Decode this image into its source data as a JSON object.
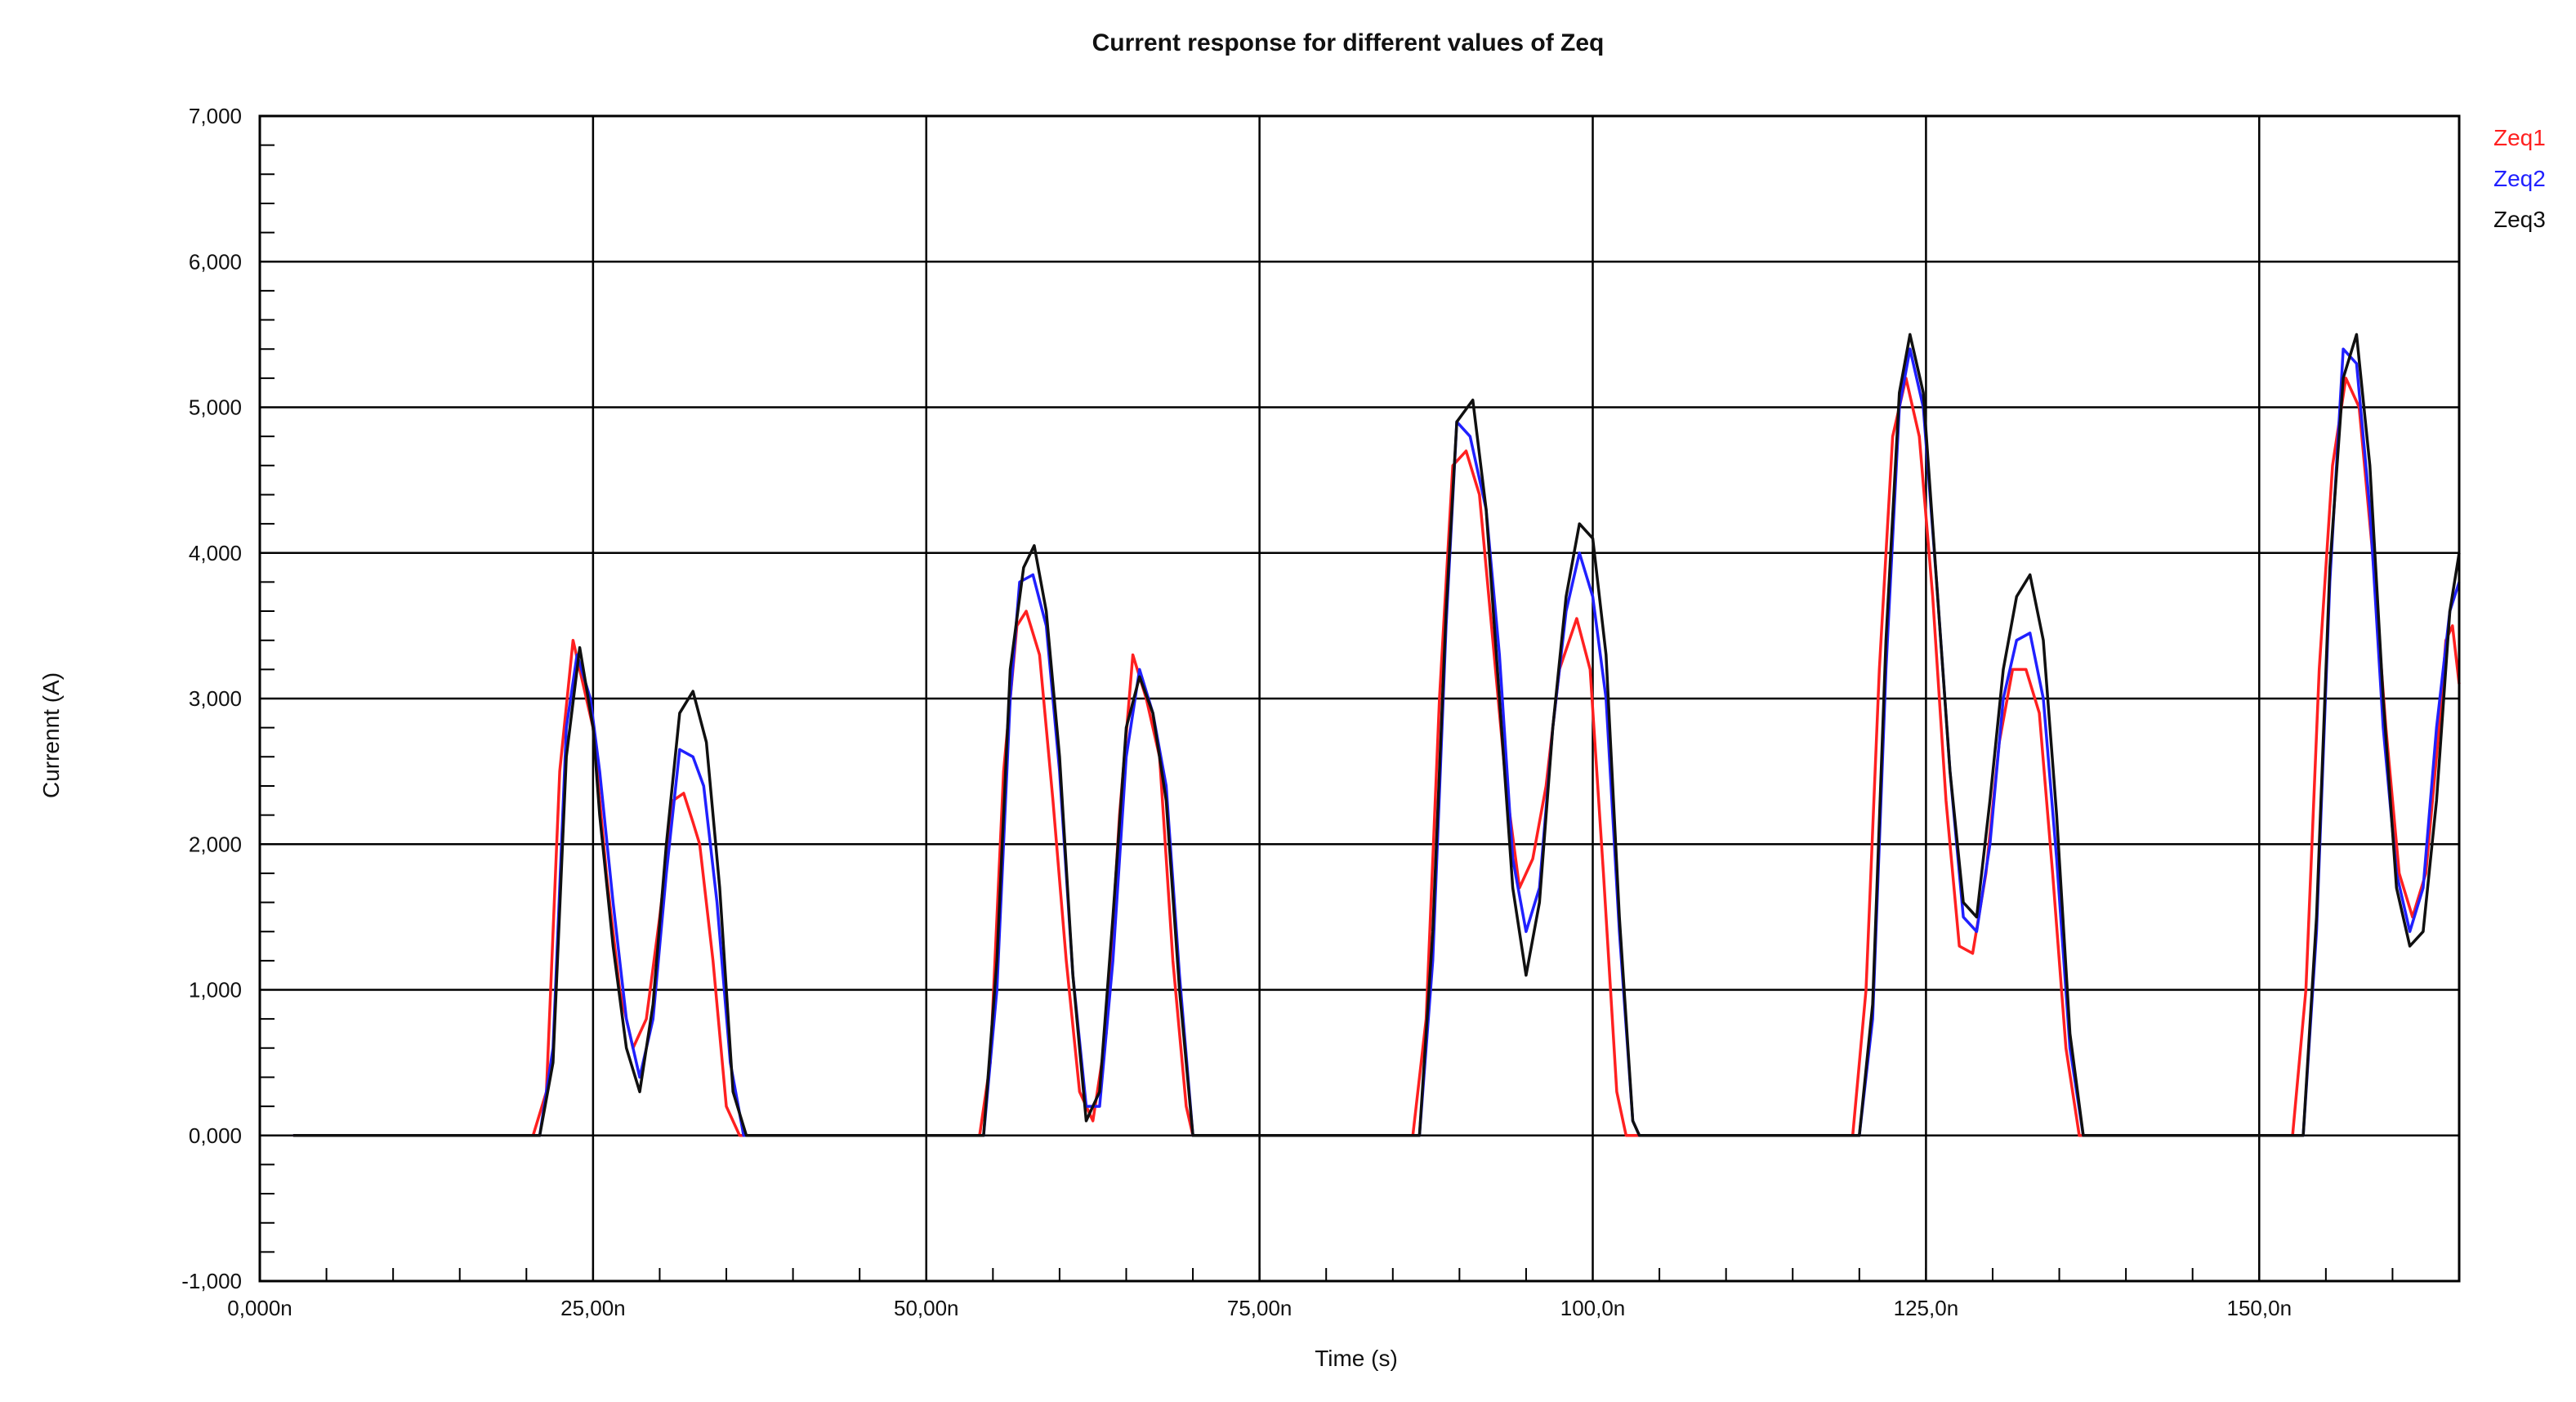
{
  "chart_data": {
    "type": "line",
    "title": "Current response for different values of Zeq",
    "xlabel": "Time (s)",
    "ylabel": "Currennt (A)",
    "xlim": [
      0,
      165
    ],
    "ylim": [
      -1000,
      7000
    ],
    "grid": true,
    "legend_position": "top-right",
    "x_ticks": [
      0,
      25,
      50,
      75,
      100,
      125,
      150
    ],
    "x_tick_labels": [
      "0,000n",
      "25,00n",
      "50,00n",
      "75,00n",
      "100,0n",
      "125,0n",
      "150,0n"
    ],
    "y_ticks": [
      -1000,
      0,
      1000,
      2000,
      3000,
      4000,
      5000,
      6000,
      7000
    ],
    "y_tick_labels": [
      "-1,000",
      "0,000",
      "1,000",
      "2,000",
      "3,000",
      "4,000",
      "5,000",
      "6,000",
      "7,000"
    ],
    "series": [
      {
        "name": "Zeq1",
        "color": "#ff2020",
        "points": [
          [
            2.5,
            0
          ],
          [
            20.5,
            0
          ],
          [
            21.5,
            300
          ],
          [
            22.5,
            2500
          ],
          [
            23.5,
            3400
          ],
          [
            24.5,
            3000
          ],
          [
            25,
            2800
          ],
          [
            26,
            1800
          ],
          [
            27,
            1000
          ],
          [
            28,
            600
          ],
          [
            29,
            800
          ],
          [
            30,
            1500
          ],
          [
            31,
            2300
          ],
          [
            31.8,
            2350
          ],
          [
            32.5,
            2150
          ],
          [
            33,
            2000
          ],
          [
            34,
            1200
          ],
          [
            35,
            200
          ],
          [
            36,
            0
          ],
          [
            54,
            0
          ],
          [
            54.8,
            500
          ],
          [
            55.8,
            2500
          ],
          [
            56.8,
            3500
          ],
          [
            57.5,
            3600
          ],
          [
            58.5,
            3300
          ],
          [
            59.5,
            2300
          ],
          [
            60.5,
            1200
          ],
          [
            61.5,
            300
          ],
          [
            62.5,
            100
          ],
          [
            63.5,
            700
          ],
          [
            64.5,
            2200
          ],
          [
            65.5,
            3300
          ],
          [
            66.5,
            3000
          ],
          [
            67.5,
            2600
          ],
          [
            68.5,
            1200
          ],
          [
            69.5,
            200
          ],
          [
            70,
            0
          ],
          [
            86.5,
            0
          ],
          [
            87.5,
            800
          ],
          [
            88.5,
            3000
          ],
          [
            89.5,
            4600
          ],
          [
            90.5,
            4700
          ],
          [
            91.5,
            4400
          ],
          [
            92.5,
            3400
          ],
          [
            93.5,
            2400
          ],
          [
            94.5,
            1700
          ],
          [
            95.5,
            1900
          ],
          [
            96.5,
            2400
          ],
          [
            97.5,
            3200
          ],
          [
            98.8,
            3550
          ],
          [
            99.8,
            3200
          ],
          [
            100.8,
            1800
          ],
          [
            101.8,
            300
          ],
          [
            102.5,
            0
          ],
          [
            119.5,
            0
          ],
          [
            120.5,
            1000
          ],
          [
            121.5,
            3200
          ],
          [
            122.5,
            4800
          ],
          [
            123.5,
            5200
          ],
          [
            124.5,
            4800
          ],
          [
            125.5,
            3700
          ],
          [
            126.5,
            2300
          ],
          [
            127.5,
            1300
          ],
          [
            128.5,
            1250
          ],
          [
            129.5,
            1800
          ],
          [
            130.5,
            2700
          ],
          [
            131.5,
            3200
          ],
          [
            132.5,
            3200
          ],
          [
            133.5,
            2900
          ],
          [
            134.5,
            1800
          ],
          [
            135.5,
            600
          ],
          [
            136.5,
            0
          ],
          [
            152.5,
            0
          ],
          [
            153.5,
            1000
          ],
          [
            154.5,
            3200
          ],
          [
            155.5,
            4600
          ],
          [
            156.5,
            5200
          ],
          [
            157.5,
            5000
          ],
          [
            158.5,
            4000
          ],
          [
            159.5,
            2800
          ],
          [
            160.5,
            1800
          ],
          [
            161.5,
            1500
          ],
          [
            162.5,
            1800
          ],
          [
            163.5,
            2800
          ],
          [
            164,
            3400
          ],
          [
            164.5,
            3500
          ],
          [
            165,
            3100
          ]
        ]
      },
      {
        "name": "Zeq2",
        "color": "#2020ff",
        "points": [
          [
            2.5,
            0
          ],
          [
            21,
            0
          ],
          [
            22,
            600
          ],
          [
            23,
            2800
          ],
          [
            23.8,
            3300
          ],
          [
            24.8,
            3000
          ],
          [
            25.5,
            2500
          ],
          [
            26.5,
            1600
          ],
          [
            27.5,
            800
          ],
          [
            28.5,
            400
          ],
          [
            29.5,
            800
          ],
          [
            30.5,
            1800
          ],
          [
            31.5,
            2650
          ],
          [
            32.5,
            2600
          ],
          [
            33.3,
            2400
          ],
          [
            34.3,
            1600
          ],
          [
            35.3,
            500
          ],
          [
            36.3,
            0
          ],
          [
            54.3,
            0
          ],
          [
            55.3,
            1000
          ],
          [
            56.3,
            3000
          ],
          [
            57,
            3800
          ],
          [
            58,
            3850
          ],
          [
            59,
            3500
          ],
          [
            60,
            2500
          ],
          [
            61,
            1100
          ],
          [
            62,
            200
          ],
          [
            63,
            200
          ],
          [
            64,
            1200
          ],
          [
            65,
            2600
          ],
          [
            66,
            3200
          ],
          [
            67,
            2900
          ],
          [
            68,
            2400
          ],
          [
            69,
            1100
          ],
          [
            70,
            0
          ],
          [
            87,
            0
          ],
          [
            88,
            1200
          ],
          [
            89,
            3500
          ],
          [
            89.8,
            4900
          ],
          [
            90.8,
            4800
          ],
          [
            92,
            4300
          ],
          [
            93,
            3300
          ],
          [
            94,
            1900
          ],
          [
            95,
            1400
          ],
          [
            96,
            1700
          ],
          [
            97,
            2800
          ],
          [
            98,
            3600
          ],
          [
            99,
            4000
          ],
          [
            100,
            3700
          ],
          [
            101,
            3000
          ],
          [
            102,
            1400
          ],
          [
            103,
            100
          ],
          [
            103.5,
            0
          ],
          [
            120,
            0
          ],
          [
            121,
            800
          ],
          [
            122,
            3200
          ],
          [
            123,
            5000
          ],
          [
            123.8,
            5400
          ],
          [
            124.8,
            5000
          ],
          [
            125.8,
            3800
          ],
          [
            126.8,
            2500
          ],
          [
            127.8,
            1500
          ],
          [
            128.8,
            1400
          ],
          [
            129.8,
            2000
          ],
          [
            130.8,
            3000
          ],
          [
            131.8,
            3400
          ],
          [
            132.8,
            3450
          ],
          [
            133.8,
            3000
          ],
          [
            134.8,
            1900
          ],
          [
            135.8,
            600
          ],
          [
            136.8,
            0
          ],
          [
            153.3,
            0
          ],
          [
            154.3,
            1400
          ],
          [
            155.3,
            3800
          ],
          [
            156.3,
            5400
          ],
          [
            157.3,
            5300
          ],
          [
            158.3,
            4300
          ],
          [
            159.3,
            2800
          ],
          [
            160.3,
            1800
          ],
          [
            161.3,
            1400
          ],
          [
            162.3,
            1700
          ],
          [
            163.3,
            2800
          ],
          [
            164.3,
            3600
          ],
          [
            165,
            3800
          ]
        ]
      },
      {
        "name": "Zeq3",
        "color": "#101010",
        "points": [
          [
            2.5,
            0
          ],
          [
            21,
            0
          ],
          [
            22,
            500
          ],
          [
            23,
            2600
          ],
          [
            24,
            3350
          ],
          [
            25,
            2800
          ],
          [
            25.5,
            2200
          ],
          [
            26.5,
            1300
          ],
          [
            27.5,
            600
          ],
          [
            28.5,
            300
          ],
          [
            29.5,
            900
          ],
          [
            30.5,
            2000
          ],
          [
            31.5,
            2900
          ],
          [
            32.5,
            3050
          ],
          [
            33.5,
            2700
          ],
          [
            34.5,
            1700
          ],
          [
            35.5,
            300
          ],
          [
            36.5,
            0
          ],
          [
            54.3,
            0
          ],
          [
            55.3,
            1200
          ],
          [
            56.3,
            3200
          ],
          [
            57.3,
            3900
          ],
          [
            58.1,
            4050
          ],
          [
            59,
            3600
          ],
          [
            60,
            2600
          ],
          [
            61,
            1100
          ],
          [
            62,
            100
          ],
          [
            63,
            300
          ],
          [
            64,
            1500
          ],
          [
            65,
            2800
          ],
          [
            66,
            3150
          ],
          [
            67,
            2900
          ],
          [
            68,
            2300
          ],
          [
            69,
            1000
          ],
          [
            70,
            0
          ],
          [
            87,
            0
          ],
          [
            88,
            1400
          ],
          [
            89,
            3600
          ],
          [
            89.8,
            4900
          ],
          [
            91,
            5050
          ],
          [
            92,
            4300
          ],
          [
            93,
            3000
          ],
          [
            94,
            1700
          ],
          [
            95,
            1100
          ],
          [
            96,
            1600
          ],
          [
            97,
            2800
          ],
          [
            98,
            3700
          ],
          [
            99,
            4200
          ],
          [
            100,
            4100
          ],
          [
            101,
            3300
          ],
          [
            102,
            1500
          ],
          [
            103,
            100
          ],
          [
            103.5,
            0
          ],
          [
            120,
            0
          ],
          [
            121,
            900
          ],
          [
            122,
            3400
          ],
          [
            123,
            5100
          ],
          [
            123.8,
            5500
          ],
          [
            124.8,
            5100
          ],
          [
            125.8,
            3800
          ],
          [
            126.8,
            2500
          ],
          [
            127.8,
            1600
          ],
          [
            128.8,
            1500
          ],
          [
            129.8,
            2300
          ],
          [
            130.8,
            3200
          ],
          [
            131.8,
            3700
          ],
          [
            132.8,
            3850
          ],
          [
            133.8,
            3400
          ],
          [
            134.8,
            2200
          ],
          [
            135.8,
            700
          ],
          [
            136.8,
            0
          ],
          [
            153.3,
            0
          ],
          [
            154.3,
            1500
          ],
          [
            155.3,
            3900
          ],
          [
            156.3,
            5200
          ],
          [
            157.3,
            5500
          ],
          [
            158.3,
            4600
          ],
          [
            159.3,
            3000
          ],
          [
            160.3,
            1700
          ],
          [
            161.3,
            1300
          ],
          [
            162.3,
            1400
          ],
          [
            163.3,
            2300
          ],
          [
            164.3,
            3600
          ],
          [
            165,
            4000
          ]
        ]
      }
    ]
  }
}
